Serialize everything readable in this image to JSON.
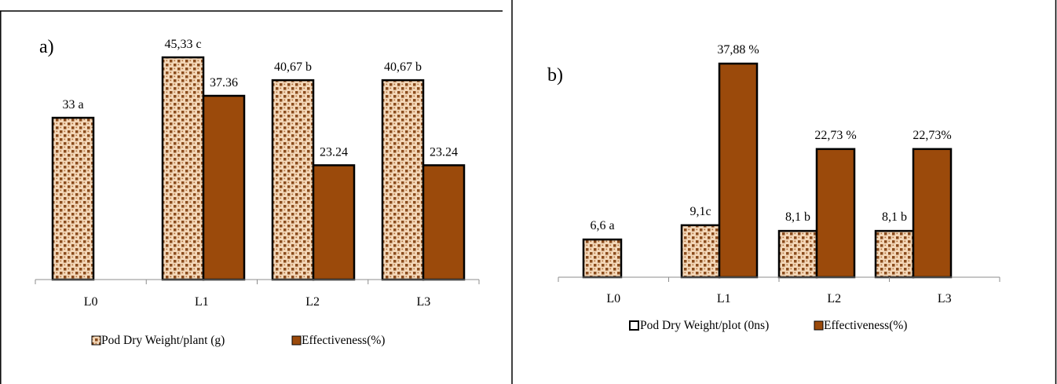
{
  "colors": {
    "pod_fill": "#f3d7b8",
    "pod_dots": "#8a4b1c",
    "effectiveness": "#9b4a0b",
    "outline": "#000000",
    "axis": "#8c8c8c",
    "border": "#000000"
  },
  "chart_data": [
    {
      "type": "bar",
      "panel_label": "a)",
      "categories": [
        "L0",
        "L1",
        "L2",
        "L3"
      ],
      "series": [
        {
          "name": "Pod Dry Weight/plant (g)",
          "values": [
            33.0,
            45.33,
            40.67,
            40.67
          ],
          "labels": [
            "33 a",
            "45,33 c",
            "40,67 b",
            "40,67 b"
          ]
        },
        {
          "name": "Effectiveness(%)",
          "values": [
            null,
            37.36,
            23.24,
            23.24
          ],
          "labels": [
            "",
            "37.36",
            "23.24",
            "23.24"
          ]
        }
      ],
      "legend": "bottom"
    },
    {
      "type": "bar",
      "panel_label": "b)",
      "categories": [
        "L0",
        "L1",
        "L2",
        "L3"
      ],
      "series": [
        {
          "name": "Pod Dry Weight/plot (0ns)",
          "values": [
            6.6,
            9.1,
            8.1,
            8.1
          ],
          "labels": [
            "6,6 a",
            "9,1c",
            "8,1 b",
            "8,1 b"
          ]
        },
        {
          "name": "Effectiveness(%)",
          "values": [
            null,
            37.88,
            22.73,
            22.73
          ],
          "labels": [
            "",
            "37,88 %",
            "22,73 %",
            "22,73%"
          ]
        }
      ],
      "legend": "bottom"
    }
  ]
}
